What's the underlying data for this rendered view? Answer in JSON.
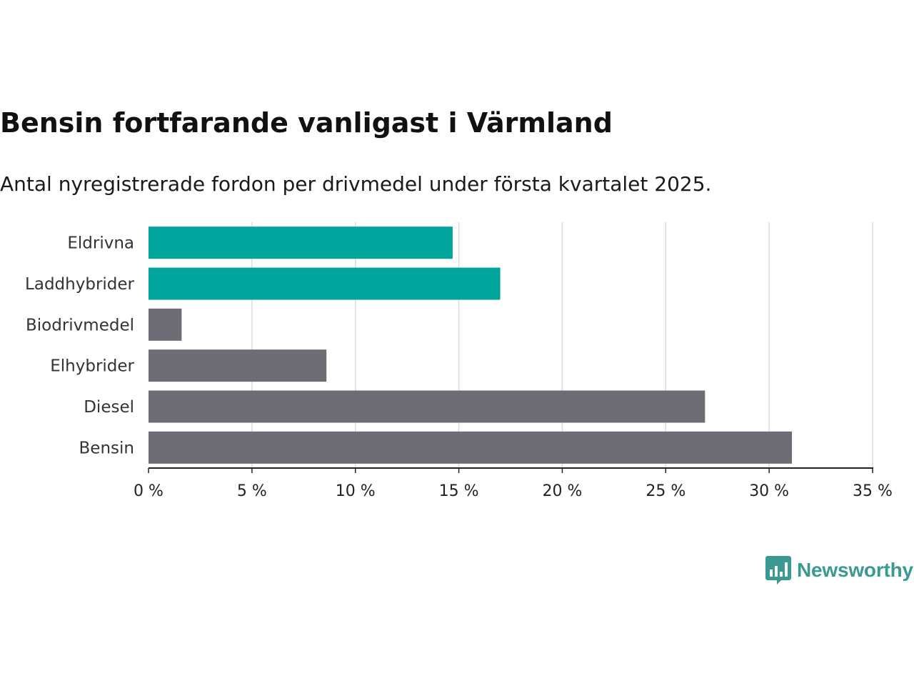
{
  "header": {
    "title": "Bensin fortfarande vanligast i Värmland",
    "subtitle": "Antal nyregistrerade fordon per drivmedel under första kvartalet 2025."
  },
  "chart_data": {
    "type": "bar",
    "orientation": "horizontal",
    "categories": [
      "Eldrivna",
      "Laddhybrider",
      "Biodrivmedel",
      "Elhybrider",
      "Diesel",
      "Bensin"
    ],
    "values": [
      14.7,
      17.0,
      1.6,
      8.6,
      26.9,
      31.1
    ],
    "bar_colors": [
      "#00a49a",
      "#00a49a",
      "#6e6d75",
      "#6e6d75",
      "#6e6d75",
      "#6e6d75"
    ],
    "xlim": [
      0,
      35
    ],
    "x_ticks": [
      0,
      5,
      10,
      15,
      20,
      25,
      30,
      35
    ],
    "x_tick_labels": [
      "0 %",
      "5 %",
      "10 %",
      "15 %",
      "20 %",
      "25 %",
      "30 %",
      "35 %"
    ],
    "grid": "vertical",
    "legend": "none"
  },
  "brand": {
    "name": "Newsworthy",
    "icon": "newsworthy-logo-icon",
    "color": "#3a9a92"
  }
}
